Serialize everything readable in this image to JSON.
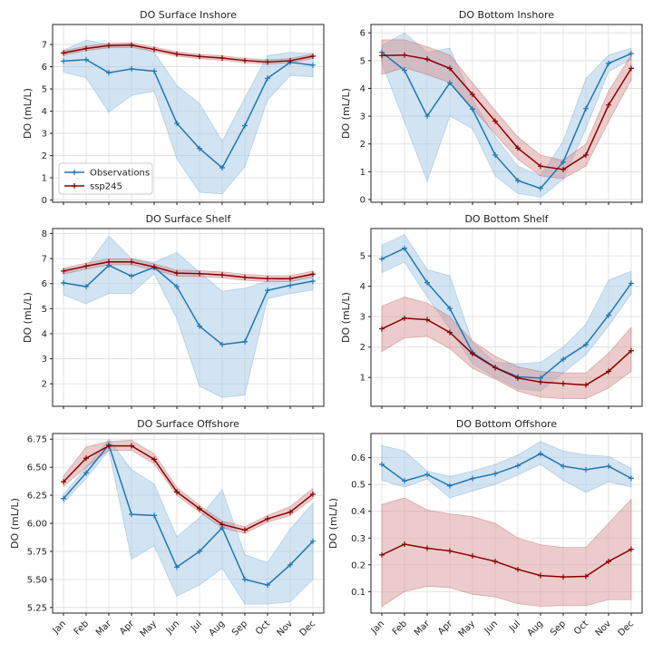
{
  "colors": {
    "observations": "#1f77b4",
    "ssp245": "#8b0000",
    "obs_band": "#a6c8e6",
    "ssp_band": "#d28c8c",
    "grid": "#dddddd",
    "frame": "#222222"
  },
  "chart_data": [
    {
      "type": "line",
      "title": "DO Surface Inshore",
      "ylabel": "DO (mL/L)",
      "xlabel": "",
      "categories": [
        "Jan",
        "Feb",
        "Mar",
        "Apr",
        "May",
        "Jun",
        "Jul",
        "Aug",
        "Sep",
        "Oct",
        "Nov",
        "Dec"
      ],
      "ylim": [
        -0.1,
        7.9
      ],
      "yticks": [
        0,
        1,
        2,
        3,
        4,
        5,
        6,
        7
      ],
      "show_xticks": false,
      "grid": true,
      "legend": "lower-left",
      "series": [
        {
          "name": "Observations",
          "color": "#1f77b4",
          "values": [
            6.25,
            6.32,
            5.73,
            5.9,
            5.8,
            3.45,
            2.32,
            1.45,
            3.35,
            5.48,
            6.2,
            6.07
          ],
          "lower": [
            5.75,
            5.5,
            3.95,
            4.7,
            4.9,
            1.85,
            0.35,
            0.28,
            1.5,
            4.5,
            5.6,
            5.55
          ],
          "upper": [
            6.75,
            7.2,
            7.0,
            7.05,
            6.65,
            5.15,
            4.35,
            2.65,
            4.6,
            6.5,
            6.65,
            6.6
          ]
        },
        {
          "name": "ssp245",
          "color": "#8b0000",
          "values": [
            6.62,
            6.82,
            6.95,
            6.97,
            6.78,
            6.57,
            6.46,
            6.39,
            6.28,
            6.21,
            6.27,
            6.47
          ],
          "lower": [
            6.52,
            6.72,
            6.85,
            6.87,
            6.68,
            6.47,
            6.36,
            6.29,
            6.18,
            6.11,
            6.17,
            6.37
          ],
          "upper": [
            6.72,
            6.92,
            7.05,
            7.07,
            6.88,
            6.67,
            6.56,
            6.49,
            6.38,
            6.31,
            6.37,
            6.57
          ]
        }
      ]
    },
    {
      "type": "line",
      "title": "DO Bottom Inshore",
      "ylabel": "DO (mL/L)",
      "xlabel": "",
      "categories": [
        "Jan",
        "Feb",
        "Mar",
        "Apr",
        "May",
        "Jun",
        "Jul",
        "Aug",
        "Sep",
        "Oct",
        "Nov",
        "Dec"
      ],
      "ylim": [
        -0.1,
        6.3
      ],
      "yticks": [
        0,
        1,
        2,
        3,
        4,
        5,
        6
      ],
      "show_xticks": false,
      "grid": true,
      "legend": "none",
      "series": [
        {
          "name": "Observations",
          "color": "#1f77b4",
          "values": [
            5.3,
            4.65,
            3.0,
            4.2,
            3.25,
            1.6,
            0.68,
            0.4,
            1.35,
            3.27,
            4.9,
            5.25
          ],
          "lower": [
            4.9,
            2.8,
            0.65,
            3.0,
            2.55,
            0.85,
            0.22,
            0.08,
            0.72,
            2.55,
            4.6,
            5.05
          ],
          "upper": [
            5.55,
            6.0,
            5.3,
            5.45,
            3.6,
            2.25,
            1.2,
            0.85,
            2.1,
            4.35,
            5.2,
            5.45
          ]
        },
        {
          "name": "ssp245",
          "color": "#8b0000",
          "values": [
            5.18,
            5.2,
            5.05,
            4.72,
            3.78,
            2.82,
            1.85,
            1.2,
            1.08,
            1.6,
            3.4,
            4.72
          ],
          "lower": [
            4.5,
            4.75,
            4.5,
            4.2,
            3.3,
            2.35,
            1.45,
            0.85,
            0.75,
            1.2,
            2.8,
            4.3
          ],
          "upper": [
            5.75,
            5.75,
            5.5,
            5.2,
            4.2,
            3.2,
            2.25,
            1.6,
            1.4,
            2.0,
            3.9,
            5.2
          ]
        }
      ]
    },
    {
      "type": "line",
      "title": "DO Surface Shelf",
      "ylabel": "DO (mL/L)",
      "xlabel": "",
      "categories": [
        "Jan",
        "Feb",
        "Mar",
        "Apr",
        "May",
        "Jun",
        "Jul",
        "Aug",
        "Sep",
        "Oct",
        "Nov",
        "Dec"
      ],
      "ylim": [
        1.1,
        8.2
      ],
      "yticks": [
        2,
        3,
        4,
        5,
        6,
        7,
        8
      ],
      "show_xticks": false,
      "grid": true,
      "legend": "none",
      "series": [
        {
          "name": "Observations",
          "color": "#1f77b4",
          "values": [
            6.03,
            5.88,
            6.73,
            6.3,
            6.65,
            5.88,
            4.3,
            3.57,
            3.68,
            5.73,
            5.93,
            6.1
          ],
          "lower": [
            5.55,
            5.2,
            5.6,
            5.6,
            6.4,
            4.6,
            1.9,
            1.45,
            1.55,
            5.4,
            5.6,
            5.75
          ],
          "upper": [
            6.6,
            6.65,
            7.9,
            7.0,
            6.85,
            7.25,
            6.45,
            5.7,
            5.82,
            6.1,
            6.2,
            6.35
          ]
        },
        {
          "name": "ssp245",
          "color": "#8b0000",
          "values": [
            6.5,
            6.7,
            6.87,
            6.87,
            6.67,
            6.42,
            6.4,
            6.35,
            6.25,
            6.2,
            6.2,
            6.38
          ],
          "lower": [
            6.38,
            6.58,
            6.75,
            6.75,
            6.55,
            6.3,
            6.28,
            6.23,
            6.13,
            6.08,
            6.08,
            6.26
          ],
          "upper": [
            6.62,
            6.82,
            6.99,
            6.99,
            6.79,
            6.54,
            6.52,
            6.47,
            6.37,
            6.32,
            6.32,
            6.5
          ]
        }
      ]
    },
    {
      "type": "line",
      "title": "DO Bottom Shelf",
      "ylabel": "DO (mL/L)",
      "xlabel": "",
      "categories": [
        "Jan",
        "Feb",
        "Mar",
        "Apr",
        "May",
        "Jun",
        "Jul",
        "Aug",
        "Sep",
        "Oct",
        "Nov",
        "Dec"
      ],
      "ylim": [
        0.05,
        5.9
      ],
      "yticks": [
        1,
        2,
        3,
        4,
        5
      ],
      "show_xticks": false,
      "grid": true,
      "legend": "none",
      "series": [
        {
          "name": "Observations",
          "color": "#1f77b4",
          "values": [
            4.9,
            5.25,
            4.12,
            3.27,
            1.82,
            1.33,
            1.02,
            0.98,
            1.6,
            2.08,
            3.05,
            4.1
          ],
          "lower": [
            4.45,
            4.8,
            3.65,
            2.6,
            1.45,
            1.0,
            0.62,
            0.55,
            1.15,
            1.75,
            2.7,
            3.75
          ],
          "upper": [
            5.35,
            5.7,
            4.55,
            4.35,
            2.15,
            1.5,
            1.45,
            1.5,
            2.0,
            2.75,
            4.2,
            4.5
          ]
        },
        {
          "name": "ssp245",
          "color": "#8b0000",
          "values": [
            2.6,
            2.95,
            2.9,
            2.48,
            1.78,
            1.32,
            0.98,
            0.85,
            0.8,
            0.75,
            1.2,
            1.88
          ],
          "lower": [
            1.85,
            2.3,
            2.35,
            1.95,
            1.3,
            0.95,
            0.55,
            0.35,
            0.3,
            0.3,
            0.65,
            1.2
          ],
          "upper": [
            3.35,
            3.65,
            3.45,
            3.0,
            2.2,
            1.7,
            1.35,
            1.2,
            1.15,
            1.15,
            1.8,
            2.65
          ]
        }
      ]
    },
    {
      "type": "line",
      "title": "DO Surface Offshore",
      "ylabel": "DO (mL/L)",
      "xlabel": "",
      "categories": [
        "Jan",
        "Feb",
        "Mar",
        "Apr",
        "May",
        "Jun",
        "Jul",
        "Aug",
        "Sep",
        "Oct",
        "Nov",
        "Dec"
      ],
      "ylim": [
        5.2,
        6.8
      ],
      "yticks": [
        5.25,
        5.5,
        5.75,
        6.0,
        6.25,
        6.5,
        6.75
      ],
      "yformat": 2,
      "show_xticks": true,
      "grid": true,
      "legend": "none",
      "series": [
        {
          "name": "Observations",
          "color": "#1f77b4",
          "values": [
            6.22,
            6.45,
            6.7,
            6.08,
            6.07,
            5.61,
            5.75,
            5.96,
            5.5,
            5.45,
            5.63,
            5.84
          ],
          "lower": [
            6.18,
            6.4,
            6.65,
            5.68,
            5.8,
            5.35,
            5.45,
            5.6,
            5.28,
            5.28,
            5.3,
            5.5
          ],
          "upper": [
            6.26,
            6.5,
            6.75,
            6.48,
            6.35,
            5.88,
            6.05,
            6.3,
            5.72,
            5.65,
            5.95,
            6.18
          ]
        },
        {
          "name": "ssp245",
          "color": "#8b0000",
          "values": [
            6.37,
            6.58,
            6.69,
            6.69,
            6.57,
            6.28,
            6.13,
            5.99,
            5.94,
            6.04,
            6.1,
            6.26
          ],
          "lower": [
            6.33,
            6.5,
            6.65,
            6.65,
            6.53,
            6.25,
            6.1,
            5.96,
            5.91,
            6.01,
            6.07,
            6.22
          ],
          "upper": [
            6.42,
            6.68,
            6.73,
            6.74,
            6.62,
            6.32,
            6.16,
            6.02,
            5.97,
            6.07,
            6.15,
            6.31
          ]
        }
      ]
    },
    {
      "type": "line",
      "title": "DO Bottom Offshore",
      "ylabel": "DO (mL/L)",
      "xlabel": "",
      "categories": [
        "Jan",
        "Feb",
        "Mar",
        "Apr",
        "May",
        "Jun",
        "Jul",
        "Aug",
        "Sep",
        "Oct",
        "Nov",
        "Dec"
      ],
      "ylim": [
        0.02,
        0.69
      ],
      "yticks": [
        0.1,
        0.2,
        0.3,
        0.4,
        0.5,
        0.6
      ],
      "yformat": 1,
      "show_xticks": true,
      "grid": true,
      "legend": "none",
      "series": [
        {
          "name": "Observations",
          "color": "#1f77b4",
          "values": [
            0.575,
            0.513,
            0.537,
            0.495,
            0.522,
            0.54,
            0.57,
            0.615,
            0.568,
            0.555,
            0.568,
            0.523
          ],
          "lower": [
            0.515,
            0.49,
            0.52,
            0.45,
            0.475,
            0.5,
            0.535,
            0.575,
            0.515,
            0.47,
            0.51,
            0.49
          ],
          "upper": [
            0.645,
            0.625,
            0.55,
            0.53,
            0.55,
            0.575,
            0.61,
            0.66,
            0.625,
            0.61,
            0.605,
            0.56
          ]
        },
        {
          "name": "ssp245",
          "color": "#8b0000",
          "values": [
            0.237,
            0.277,
            0.262,
            0.252,
            0.233,
            0.213,
            0.183,
            0.16,
            0.155,
            0.157,
            0.213,
            0.258
          ],
          "lower": [
            0.045,
            0.1,
            0.12,
            0.115,
            0.09,
            0.08,
            0.055,
            0.045,
            0.048,
            0.048,
            0.07,
            0.07
          ],
          "upper": [
            0.425,
            0.45,
            0.405,
            0.39,
            0.38,
            0.355,
            0.3,
            0.275,
            0.265,
            0.265,
            0.355,
            0.445
          ]
        }
      ]
    }
  ]
}
